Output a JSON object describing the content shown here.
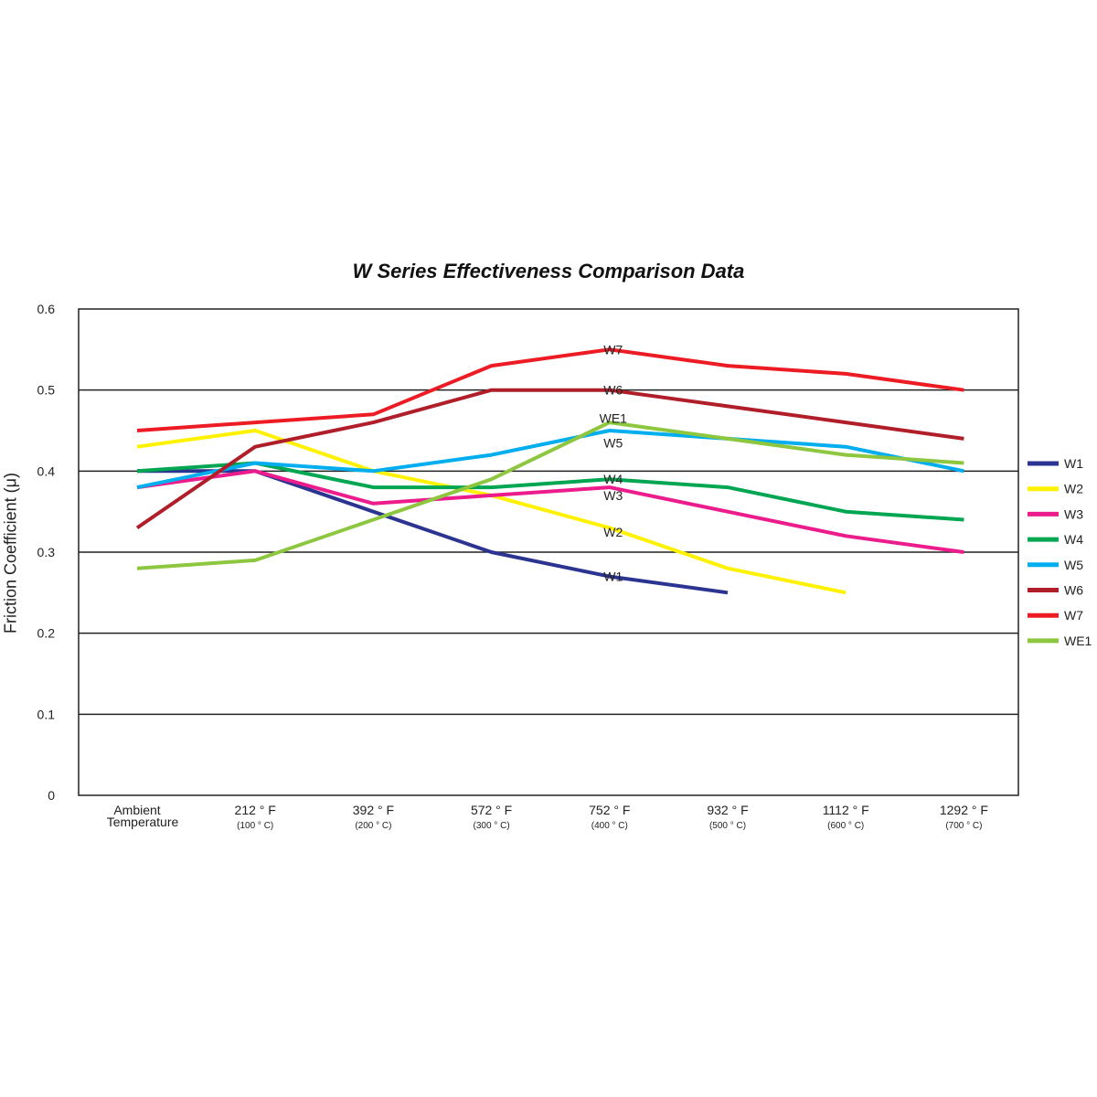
{
  "chart_data": {
    "type": "line",
    "title": "W Series Effectiveness Comparison Data",
    "ylabel": "Friction Coefficient (μ)",
    "xlabel": "",
    "ylim": [
      0,
      0.6
    ],
    "yticks": [
      "0",
      "0.1",
      "0.2",
      "0.3",
      "0.4",
      "0.5",
      "0.6"
    ],
    "grid": "horizontal",
    "legend_position": "right",
    "categories": [
      {
        "line1": "Ambient",
        "line2": "Temperature"
      },
      {
        "line1": "212 ° F",
        "line2": "(100 ° C)"
      },
      {
        "line1": "392 ° F",
        "line2": "(200 ° C)"
      },
      {
        "line1": "572 ° F",
        "line2": "(300 ° C)"
      },
      {
        "line1": "752 ° F",
        "line2": "(400 ° C)"
      },
      {
        "line1": "932 ° F",
        "line2": "(500 ° C)"
      },
      {
        "line1": "1112 ° F",
        "line2": "(600 ° C)"
      },
      {
        "line1": "1292 ° F",
        "line2": "(700 ° C)"
      }
    ],
    "series": [
      {
        "name": "W1",
        "color": "#2b3491",
        "values": [
          0.4,
          0.4,
          0.35,
          0.3,
          0.27,
          0.25,
          null,
          null
        ]
      },
      {
        "name": "W2",
        "color": "#fff200",
        "values": [
          0.43,
          0.45,
          0.4,
          0.37,
          0.33,
          0.28,
          0.25,
          null
        ]
      },
      {
        "name": "W3",
        "color": "#ec1c8c",
        "values": [
          0.38,
          0.4,
          0.36,
          0.37,
          0.38,
          0.35,
          0.32,
          0.3
        ]
      },
      {
        "name": "W4",
        "color": "#00a651",
        "values": [
          0.4,
          0.41,
          0.38,
          0.38,
          0.39,
          0.38,
          0.35,
          0.34
        ]
      },
      {
        "name": "W5",
        "color": "#00aeef",
        "values": [
          0.38,
          0.41,
          0.4,
          0.42,
          0.45,
          0.44,
          0.43,
          0.4
        ]
      },
      {
        "name": "W6",
        "color": "#b01e2a",
        "values": [
          0.33,
          0.43,
          0.46,
          0.5,
          0.5,
          0.48,
          0.46,
          0.44
        ]
      },
      {
        "name": "W7",
        "color": "#ed1c24",
        "values": [
          0.45,
          0.46,
          0.47,
          0.53,
          0.55,
          0.53,
          0.52,
          0.5
        ]
      },
      {
        "name": "WE1",
        "color": "#8dc63f",
        "values": [
          0.28,
          0.29,
          0.34,
          0.39,
          0.46,
          0.44,
          0.42,
          0.41
        ]
      }
    ],
    "annotations": [
      {
        "text": "W7",
        "category_index": 4,
        "value": 0.55
      },
      {
        "text": "W6",
        "category_index": 4,
        "value": 0.5
      },
      {
        "text": "WE1",
        "category_index": 4,
        "value": 0.465
      },
      {
        "text": "W5",
        "category_index": 4,
        "value": 0.435
      },
      {
        "text": "W4",
        "category_index": 4,
        "value": 0.39
      },
      {
        "text": "W3",
        "category_index": 4,
        "value": 0.37
      },
      {
        "text": "W2",
        "category_index": 4,
        "value": 0.325
      },
      {
        "text": "W1",
        "category_index": 4,
        "value": 0.27
      }
    ]
  }
}
